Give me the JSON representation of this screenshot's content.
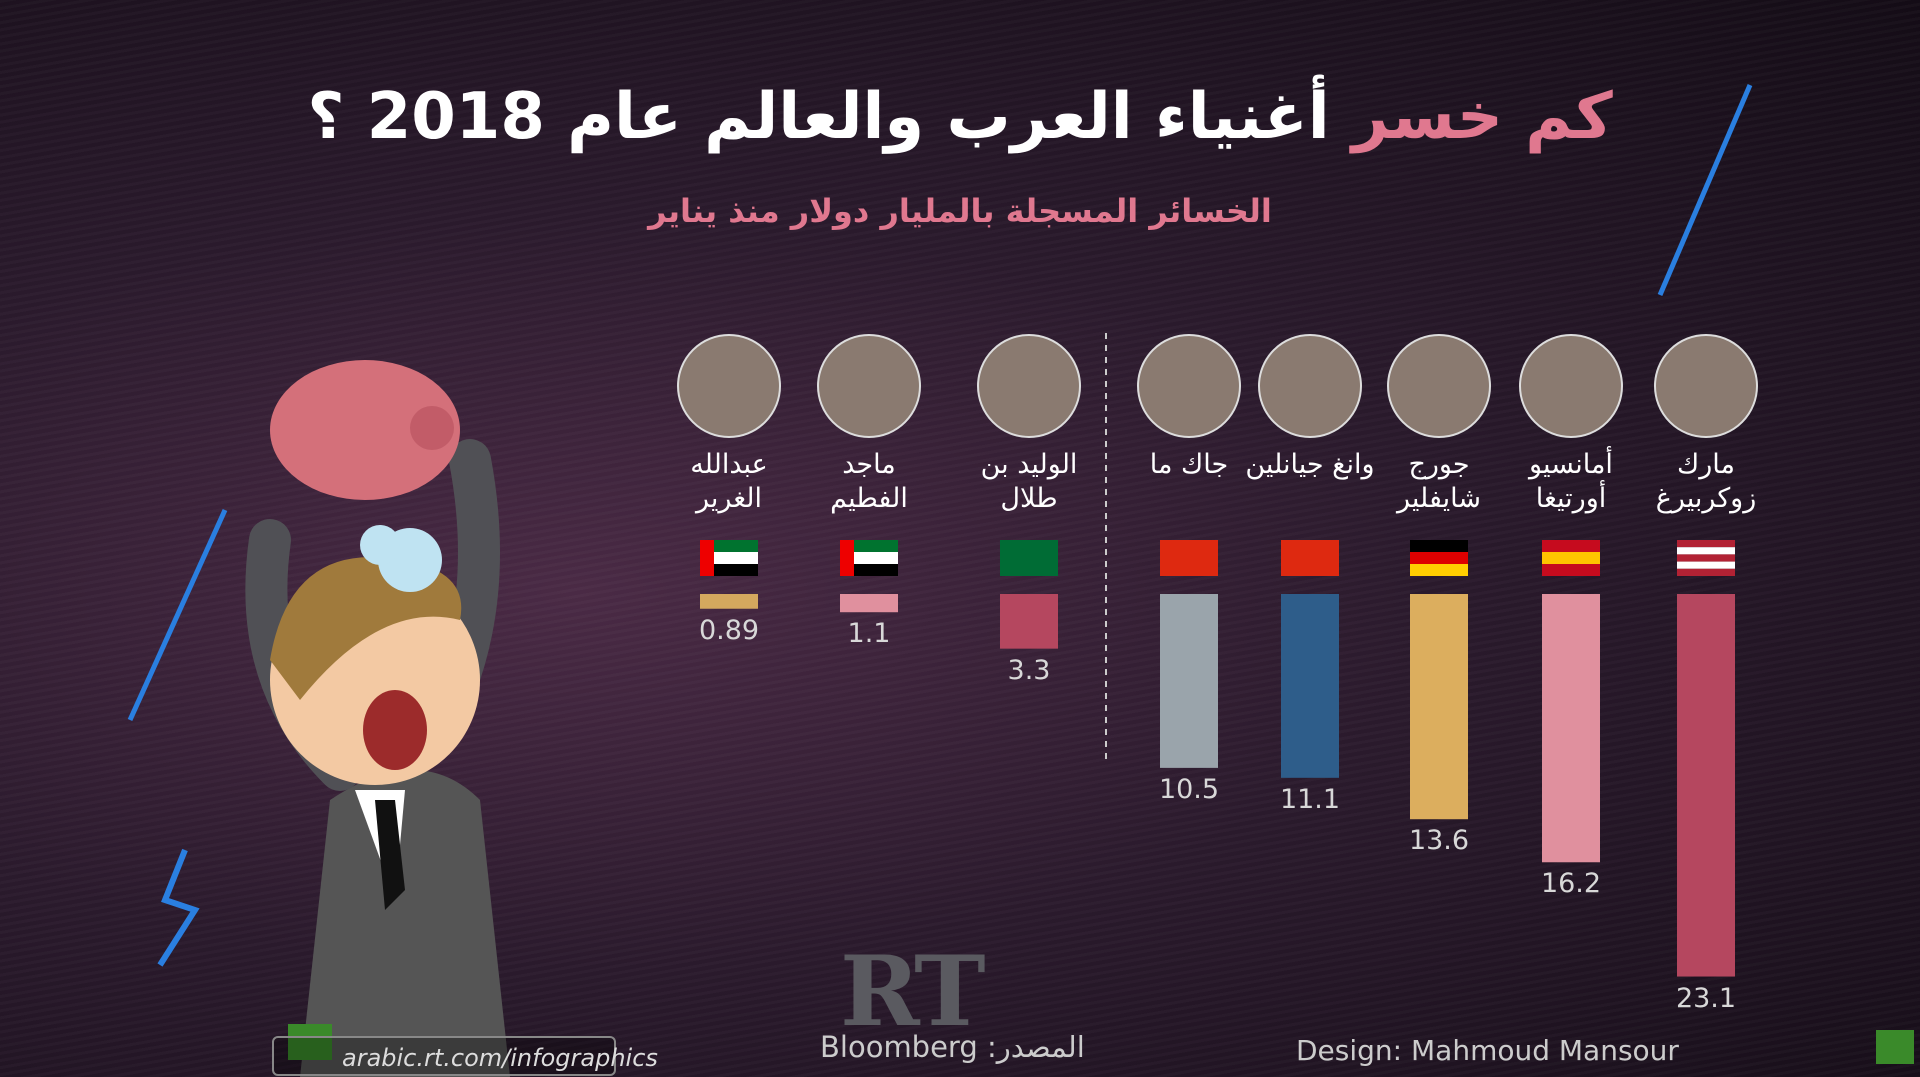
{
  "chart_data": {
    "type": "bar",
    "title_highlight": "كم خسر",
    "title": "أغنياء العرب والعالم عام 2018 ؟",
    "subtitle": "الخسائر المسجلة بالمليار دولار منذ يناير",
    "categories": [
      "مارك زوكربيرغ",
      "أمانسيو أورتيغا",
      "جورج شايفلير",
      "وانغ جيانلين",
      "جاك ما",
      "الوليد بن طلال",
      "ماجد الفطيم",
      "عبدالله الغرير"
    ],
    "values": [
      23.1,
      16.2,
      13.6,
      11.1,
      10.5,
      3.3,
      1.1,
      0.89
    ],
    "colors": [
      "#b5475f",
      "#e0909e",
      "#dcae5e",
      "#2e5d8a",
      "#9aa4ab",
      "#b5475f",
      "#e0909e",
      "#d4a85e"
    ],
    "ylim": [
      0,
      25
    ],
    "source": "المصدر: Bloomberg",
    "credit": "Design: Mahmoud Mansour",
    "url": "arabic.rt.com/infographics",
    "logo": "RT"
  }
}
